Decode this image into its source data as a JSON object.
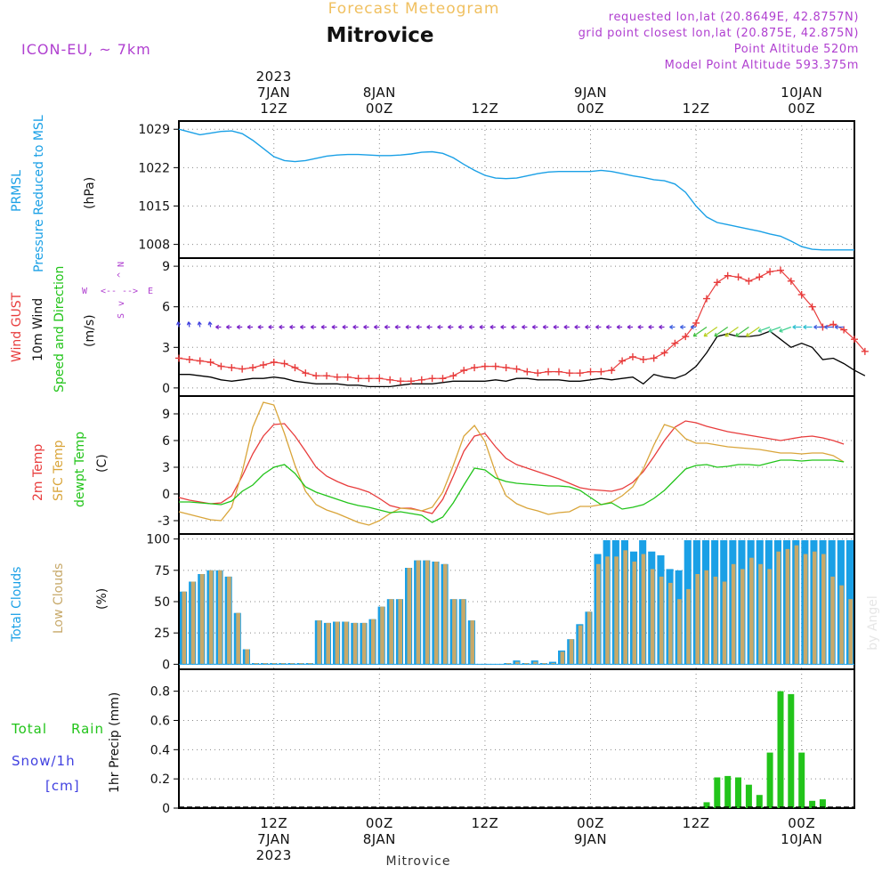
{
  "header": {
    "title": "Forecast Meteogram",
    "location": "Mitrovice",
    "model": "ICON-EU, ~ 7km",
    "requested": "requested lon,lat (20.8649E, 42.8757N)",
    "gridpoint": "grid point closest lon,lat (20.875E, 42.875N)",
    "point_alt": "Point Altitude 520m",
    "model_alt": "Model Point Altitude 593.375m",
    "footer_location": "Mitrovice",
    "watermark": "by Angel"
  },
  "colors": {
    "pressure": "#1aa0e6",
    "gust": "#e83c3c",
    "wind": "#000000",
    "temp": "#e83c3c",
    "sfc": "#d9a53a",
    "dewpt": "#22c41a",
    "total_cloud": "#1aa0e6",
    "low_cloud": "#c7a96a",
    "rain": "#22c41a",
    "snow": "#4040e0",
    "label_purple": "#b040d0",
    "title_orange": "#f0c060"
  },
  "time_axis": {
    "hours": 64,
    "top_labels": [
      {
        "h": 9,
        "lines": [
          "2023",
          "7JAN",
          "12Z"
        ]
      },
      {
        "h": 19,
        "lines": [
          "8JAN",
          "00Z"
        ]
      },
      {
        "h": 29,
        "lines": [
          "12Z"
        ]
      },
      {
        "h": 39,
        "lines": [
          "9JAN",
          "00Z"
        ]
      },
      {
        "h": 49,
        "lines": [
          "12Z"
        ]
      },
      {
        "h": 59,
        "lines": [
          "10JAN",
          "00Z"
        ]
      }
    ],
    "bottom_labels": [
      {
        "h": 9,
        "lines": [
          "12Z",
          "7JAN",
          "2023"
        ]
      },
      {
        "h": 19,
        "lines": [
          "00Z",
          "8JAN"
        ]
      },
      {
        "h": 29,
        "lines": [
          "12Z"
        ]
      },
      {
        "h": 39,
        "lines": [
          "00Z",
          "9JAN"
        ]
      },
      {
        "h": 49,
        "lines": [
          "12Z"
        ]
      },
      {
        "h": 59,
        "lines": [
          "00Z",
          "10JAN"
        ]
      }
    ]
  },
  "panels": {
    "pressure": {
      "label1": "PRMSL",
      "label2": "Pressure Reduced to MSL",
      "unit": "(hPa)",
      "ticks": [
        1008,
        1015,
        1022,
        1029
      ]
    },
    "wind": {
      "label1": "Wind GUST",
      "label2": "10m Wind",
      "label3": "Speed and Direction",
      "unit": "(m/s)",
      "ticks": [
        0,
        3,
        6,
        9
      ],
      "compass": {
        "n": "N",
        "s": "S",
        "w": "W",
        "e": "E",
        "up": "^",
        "down": "v",
        "left": "<--",
        "right": "-->"
      }
    },
    "temp": {
      "label1": "2m Temp",
      "label2": "SFC Temp",
      "label3": "dewpt Temp",
      "unit": "(C)",
      "ticks": [
        -3,
        0,
        3,
        6,
        9
      ]
    },
    "cloud": {
      "label1": "Total Clouds",
      "label2": "Low Clouds",
      "unit": "(%)",
      "ticks": [
        0,
        25,
        50,
        75,
        100
      ]
    },
    "precip": {
      "label1": "Total",
      "label1b": "Rain",
      "label2": "Snow/1h",
      "label3": "[cm]",
      "unit": "1hr Precip (mm)",
      "ticks": [
        "0",
        "0.2",
        "0.4",
        "0.6",
        "0.8"
      ]
    }
  },
  "chart_data": [
    {
      "type": "line",
      "title": "PRMSL Pressure Reduced to MSL",
      "ylabel": "(hPa)",
      "ylim": [
        1005.5,
        1030.5
      ],
      "series": [
        {
          "name": "PRMSL",
          "values": [
            1029.0,
            1028.5,
            1028.0,
            1028.3,
            1028.6,
            1028.7,
            1028.2,
            1027.0,
            1025.5,
            1024.0,
            1023.3,
            1023.1,
            1023.3,
            1023.7,
            1024.1,
            1024.3,
            1024.4,
            1024.4,
            1024.3,
            1024.2,
            1024.2,
            1024.3,
            1024.5,
            1024.8,
            1024.9,
            1024.6,
            1023.8,
            1022.6,
            1021.5,
            1020.6,
            1020.1,
            1020.0,
            1020.1,
            1020.5,
            1020.9,
            1021.2,
            1021.3,
            1021.3,
            1021.3,
            1021.3,
            1021.5,
            1021.3,
            1020.9,
            1020.5,
            1020.2,
            1019.8,
            1019.6,
            1019.0,
            1017.5,
            1015.0,
            1013.0,
            1012.0,
            1011.6,
            1011.2,
            1010.8,
            1010.4,
            1009.9,
            1009.5,
            1008.6,
            1007.6,
            1007.1,
            1007.0,
            1007.0,
            1007.0,
            1007.0
          ]
        }
      ]
    },
    {
      "type": "line",
      "title": "Wind GUST / 10m Wind Speed and Direction",
      "ylabel": "(m/s)",
      "ylim": [
        -0.6,
        9.6
      ],
      "series": [
        {
          "name": "Wind GUST",
          "values": [
            2.2,
            2.1,
            2.0,
            1.9,
            1.6,
            1.5,
            1.4,
            1.5,
            1.7,
            1.9,
            1.8,
            1.5,
            1.1,
            0.9,
            0.9,
            0.8,
            0.8,
            0.7,
            0.7,
            0.7,
            0.6,
            0.5,
            0.5,
            0.6,
            0.7,
            0.7,
            0.9,
            1.3,
            1.5,
            1.6,
            1.6,
            1.5,
            1.4,
            1.2,
            1.1,
            1.2,
            1.2,
            1.1,
            1.1,
            1.2,
            1.2,
            1.3,
            2.0,
            2.3,
            2.1,
            2.2,
            2.6,
            3.3,
            3.8,
            4.8,
            6.6,
            7.8,
            8.3,
            8.2,
            7.9,
            8.2,
            8.6,
            8.7,
            7.9,
            6.9,
            6.0,
            4.5,
            4.7,
            4.3,
            3.6,
            2.7
          ]
        },
        {
          "name": "10m Wind",
          "values": [
            1.0,
            1.0,
            0.9,
            0.8,
            0.6,
            0.5,
            0.6,
            0.7,
            0.7,
            0.8,
            0.7,
            0.5,
            0.4,
            0.3,
            0.3,
            0.3,
            0.2,
            0.2,
            0.1,
            0.1,
            0.1,
            0.2,
            0.3,
            0.3,
            0.3,
            0.4,
            0.5,
            0.5,
            0.5,
            0.5,
            0.6,
            0.5,
            0.7,
            0.7,
            0.6,
            0.6,
            0.6,
            0.5,
            0.5,
            0.6,
            0.7,
            0.6,
            0.7,
            0.8,
            0.3,
            1.0,
            0.8,
            0.7,
            1.0,
            1.6,
            2.6,
            3.8,
            4.0,
            3.8,
            3.8,
            3.9,
            4.2,
            3.6,
            3.0,
            3.3,
            3.0,
            2.1,
            2.2,
            1.8,
            1.3,
            0.9
          ]
        }
      ]
    },
    {
      "type": "line",
      "title": "2m Temp / SFC Temp / dewpt Temp",
      "ylabel": "(C)",
      "ylim": [
        -4.5,
        11.0
      ],
      "series": [
        {
          "name": "2m Temp",
          "values": [
            -0.4,
            -0.7,
            -0.9,
            -1.1,
            -1.0,
            -0.2,
            2.0,
            4.5,
            6.5,
            7.8,
            7.9,
            6.5,
            4.8,
            3.0,
            2.0,
            1.4,
            0.9,
            0.6,
            0.2,
            -0.5,
            -1.3,
            -1.6,
            -1.6,
            -1.9,
            -2.2,
            -0.6,
            2.0,
            4.8,
            6.5,
            6.8,
            5.3,
            4.0,
            3.3,
            2.9,
            2.5,
            2.1,
            1.7,
            1.2,
            0.7,
            0.5,
            0.4,
            0.3,
            0.6,
            1.3,
            2.5,
            4.2,
            6.0,
            7.5,
            8.2,
            8.0,
            7.6,
            7.3,
            7.0,
            6.8,
            6.6,
            6.4,
            6.2,
            6.0,
            6.2,
            6.4,
            6.5,
            6.3,
            6.0,
            5.6
          ]
        },
        {
          "name": "SFC Temp",
          "values": [
            -2.0,
            -2.3,
            -2.6,
            -2.9,
            -3.0,
            -1.5,
            2.5,
            7.5,
            10.3,
            10.0,
            6.8,
            3.2,
            0.3,
            -1.2,
            -1.8,
            -2.2,
            -2.7,
            -3.2,
            -3.5,
            -3.0,
            -2.2,
            -1.6,
            -1.7,
            -1.9,
            -1.5,
            0.2,
            3.2,
            6.5,
            7.7,
            5.9,
            2.4,
            -0.2,
            -1.1,
            -1.6,
            -1.9,
            -2.3,
            -2.1,
            -2.0,
            -1.4,
            -1.4,
            -1.2,
            -0.9,
            -0.2,
            0.8,
            2.8,
            5.5,
            7.8,
            7.4,
            6.2,
            5.7,
            5.7,
            5.5,
            5.3,
            5.2,
            5.1,
            5.0,
            4.8,
            4.6,
            4.6,
            4.5,
            4.6,
            4.6,
            4.3,
            3.6
          ]
        },
        {
          "name": "dewpt Temp",
          "values": [
            -0.9,
            -0.9,
            -1.0,
            -1.1,
            -1.2,
            -0.8,
            0.3,
            1.0,
            2.2,
            3.0,
            3.3,
            2.3,
            0.8,
            0.2,
            -0.2,
            -0.6,
            -1.0,
            -1.3,
            -1.5,
            -1.8,
            -2.1,
            -2.0,
            -2.2,
            -2.4,
            -3.2,
            -2.6,
            -1.0,
            1.0,
            2.9,
            2.7,
            1.8,
            1.4,
            1.2,
            1.1,
            1.0,
            0.9,
            0.9,
            0.8,
            0.4,
            -0.4,
            -1.2,
            -1.0,
            -1.7,
            -1.5,
            -1.2,
            -0.5,
            0.4,
            1.6,
            2.8,
            3.2,
            3.3,
            3.0,
            3.1,
            3.3,
            3.3,
            3.2,
            3.5,
            3.8,
            3.8,
            3.7,
            3.8,
            3.8,
            3.8,
            3.6
          ]
        }
      ]
    },
    {
      "type": "bar",
      "title": "Total Clouds / Low Clouds",
      "ylabel": "(%)",
      "ylim": [
        -4,
        104
      ],
      "series": [
        {
          "name": "Total Clouds",
          "values": [
            58,
            66,
            72,
            75,
            75,
            70,
            41,
            12,
            1,
            1,
            1,
            1,
            1,
            1,
            1,
            35,
            33,
            34,
            34,
            33,
            33,
            36,
            46,
            52,
            52,
            77,
            83,
            83,
            82,
            80,
            52,
            52,
            35,
            0,
            0,
            0,
            1,
            3,
            1,
            3,
            1,
            2,
            11,
            20,
            32,
            42,
            88,
            99,
            99,
            99,
            90,
            99,
            90,
            87,
            76,
            75,
            99,
            99,
            99,
            99,
            99,
            99,
            99,
            99,
            99,
            99,
            99,
            99,
            99,
            99,
            99,
            99,
            99,
            99,
            99
          ]
        },
        {
          "name": "Low Clouds",
          "values": [
            58,
            66,
            72,
            75,
            75,
            70,
            41,
            12,
            1,
            1,
            1,
            1,
            1,
            1,
            1,
            35,
            33,
            34,
            34,
            33,
            33,
            36,
            46,
            52,
            52,
            77,
            83,
            83,
            82,
            80,
            52,
            52,
            35,
            0,
            0,
            0,
            1,
            2,
            1,
            2,
            1,
            1,
            10,
            20,
            31,
            42,
            80,
            86,
            86,
            91,
            82,
            88,
            76,
            70,
            65,
            52,
            60,
            72,
            75,
            70,
            66,
            80,
            76,
            85,
            80,
            76,
            90,
            92,
            95,
            88,
            90,
            88,
            70,
            63,
            52
          ]
        }
      ]
    },
    {
      "type": "bar",
      "title": "1hr Precip",
      "ylabel": "1hr Precip (mm)",
      "ylim": [
        0,
        0.95
      ],
      "series": [
        {
          "name": "Total Rain",
          "values": [
            0,
            0,
            0,
            0,
            0,
            0,
            0,
            0,
            0,
            0,
            0,
            0,
            0,
            0,
            0,
            0,
            0,
            0,
            0,
            0,
            0,
            0,
            0,
            0,
            0,
            0,
            0,
            0,
            0,
            0,
            0,
            0,
            0,
            0,
            0,
            0,
            0,
            0,
            0,
            0,
            0,
            0,
            0,
            0,
            0,
            0,
            0,
            0,
            0,
            0,
            0.04,
            0.21,
            0.22,
            0.21,
            0.16,
            0.09,
            0.38,
            0.8,
            0.78,
            0.38,
            0.05,
            0.06,
            0,
            0,
            0
          ]
        }
      ]
    }
  ]
}
